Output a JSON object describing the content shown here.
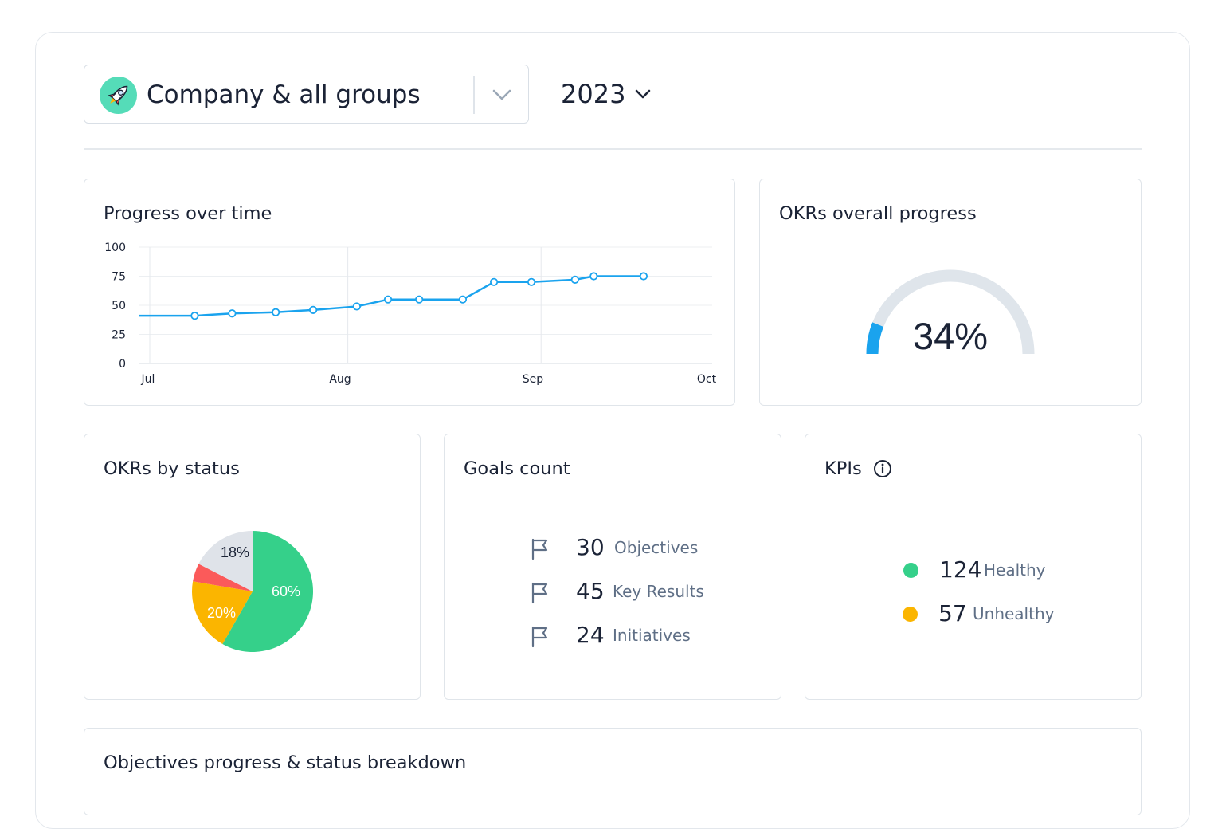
{
  "selector": {
    "label": "Company & all groups"
  },
  "year": {
    "label": "2023"
  },
  "progress_card": {
    "title": "Progress over time"
  },
  "overall_card": {
    "title": "OKRs overall progress",
    "value_label": "34%",
    "value": 34
  },
  "status_card": {
    "title": "OKRs by status"
  },
  "goals_card": {
    "title": "Goals count",
    "rows": [
      {
        "count": "30",
        "label": "Objectives"
      },
      {
        "count": "45",
        "label": "Key Results"
      },
      {
        "count": "24",
        "label": "Initiatives"
      }
    ]
  },
  "kpis_card": {
    "title": "KPIs",
    "rows": [
      {
        "count": "124",
        "label": "Healthy",
        "color": "#35d08a"
      },
      {
        "count": "57",
        "label": "Unhealthy",
        "color": "#fbb500"
      }
    ]
  },
  "breakdown_card": {
    "title": "Objectives progress & status breakdown"
  },
  "colors": {
    "accent": "#1aa3ee",
    "gauge_track": "#dfe5eb",
    "green": "#35d08a",
    "yellow": "#fbb500",
    "red": "#fb5a5a",
    "gray": "#dfe3e9"
  },
  "chart_data": [
    {
      "type": "line",
      "title": "Progress over time",
      "x_ticks": [
        "Jul",
        "Aug",
        "Sep",
        "Oct"
      ],
      "y_ticks": [
        "0",
        "25",
        "50",
        "75",
        "100"
      ],
      "ylim": [
        0,
        100
      ],
      "x_start": "2023-07-01",
      "x_end": "2023-10-01",
      "grid": true,
      "series": [
        {
          "x": [
            "2023-07-01",
            "2023-07-10",
            "2023-07-16",
            "2023-07-23",
            "2023-07-29",
            "2023-08-05",
            "2023-08-10",
            "2023-08-15",
            "2023-08-22",
            "2023-08-27",
            "2023-09-02",
            "2023-09-09",
            "2023-09-12",
            "2023-09-20"
          ],
          "y": [
            41,
            41,
            43,
            44,
            46,
            49,
            55,
            55,
            55,
            70,
            70,
            72,
            75,
            75
          ],
          "markers": [
            false,
            true,
            true,
            true,
            true,
            true,
            true,
            true,
            true,
            true,
            true,
            true,
            true,
            true
          ]
        }
      ]
    },
    {
      "type": "pie",
      "title": "OKRs by status",
      "slices": [
        {
          "label": "60%",
          "value": 60,
          "color": "#35d08a"
        },
        {
          "label": "20%",
          "value": 20,
          "color": "#fbb500"
        },
        {
          "label": "",
          "value": 5,
          "color": "#fb5a5a"
        },
        {
          "label": "18%",
          "value": 18,
          "color": "#dfe3e9"
        }
      ]
    }
  ]
}
